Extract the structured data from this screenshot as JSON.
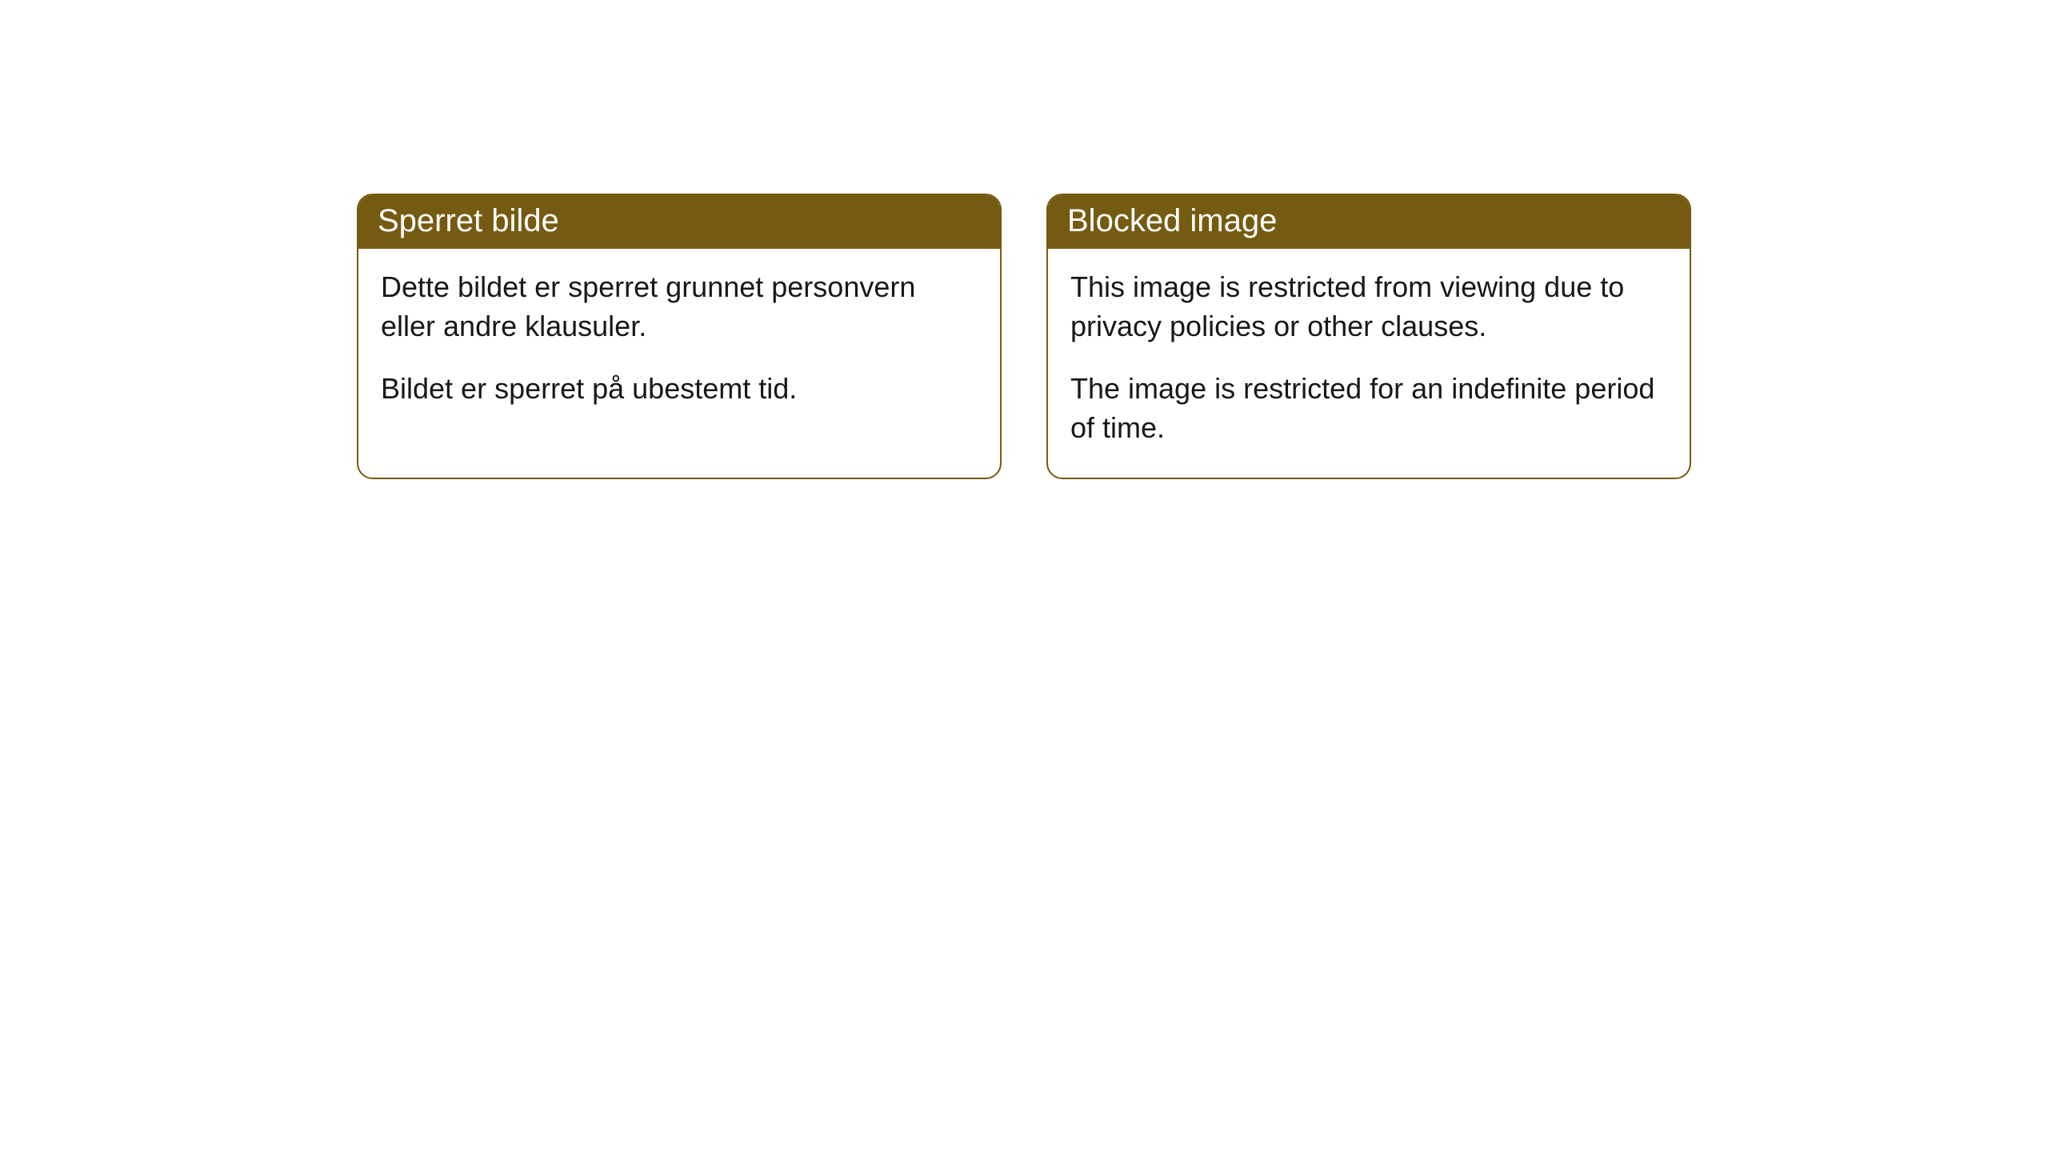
{
  "cards": [
    {
      "title": "Sperret bilde",
      "paragraph1": "Dette bildet er sperret grunnet personvern eller andre klausuler.",
      "paragraph2": "Bildet er sperret på ubestemt tid."
    },
    {
      "title": "Blocked image",
      "paragraph1": "This image is restricted from viewing due to privacy policies or other clauses.",
      "paragraph2": "The image is restricted for an indefinite period of time."
    }
  ],
  "style": {
    "header_bg": "#755a11",
    "header_text_color": "#ffffff",
    "border_color": "#755a11",
    "body_text_color": "#18181a",
    "background_color": "#ffffff",
    "header_fontsize": 40,
    "body_fontsize": 36,
    "border_radius": 20
  }
}
